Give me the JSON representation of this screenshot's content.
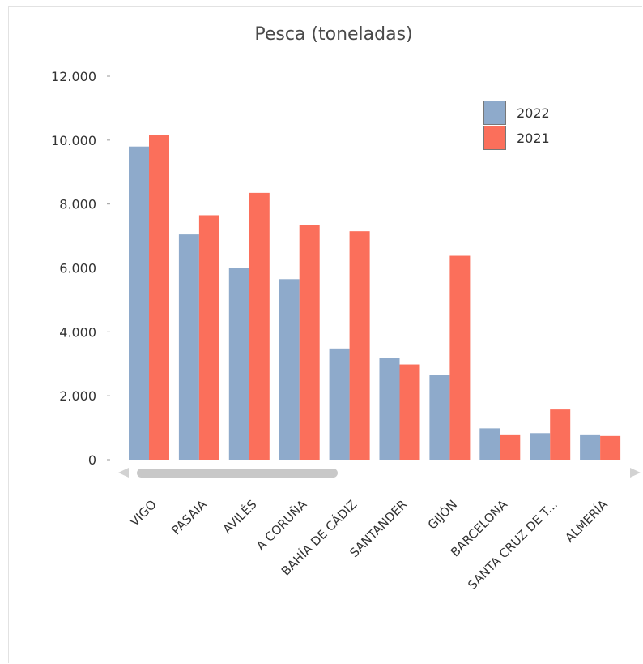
{
  "chart_data": {
    "type": "bar",
    "title": "Pesca (toneladas)",
    "categories": [
      "VIGO",
      "PASAIA",
      "AVILÉS",
      "A CORUÑA",
      "BAHÍA DE CÁDIZ",
      "SANTANDER",
      "GIJÓN",
      "BARCELONA",
      "SANTA CRUZ DE T...",
      "ALMERÍA"
    ],
    "series": [
      {
        "name": "2022",
        "color": "#8eaacb",
        "values": [
          9800,
          7050,
          6000,
          5650,
          3480,
          3180,
          2650,
          980,
          830,
          790
        ]
      },
      {
        "name": "2021",
        "color": "#fb6f5b",
        "values": [
          10150,
          7650,
          8350,
          7350,
          7150,
          2980,
          6380,
          790,
          1570,
          740
        ]
      }
    ],
    "yticks": [
      "0",
      "2.000",
      "4.000",
      "6.000",
      "8.000",
      "10.000",
      "12.000"
    ],
    "ylim": [
      0,
      12000
    ],
    "legend_position": "top-right",
    "grid": false
  }
}
